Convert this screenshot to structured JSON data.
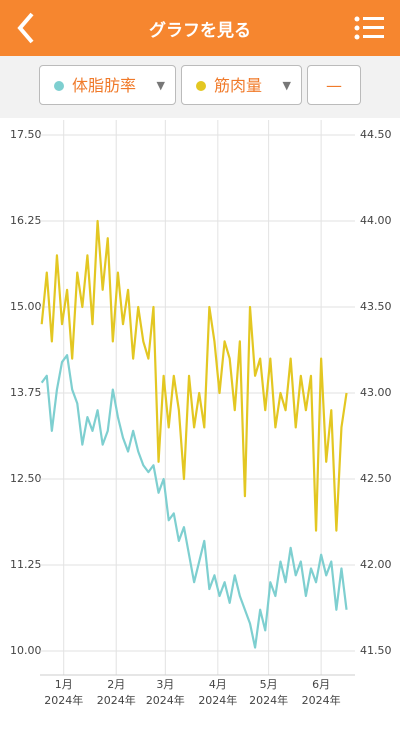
{
  "header": {
    "title": "グラフを見る"
  },
  "selectors": [
    {
      "label": "体脂肪率"
    },
    {
      "label": "筋肉量"
    },
    {
      "label": "—"
    }
  ],
  "chart_data": {
    "type": "line",
    "x": [
      -13,
      -10,
      -7,
      -4,
      -1,
      2,
      5,
      8,
      11,
      14,
      17,
      20,
      23,
      26,
      29,
      32,
      35,
      38,
      41,
      44,
      47,
      50,
      53,
      56,
      59,
      62,
      65,
      68,
      71,
      74,
      77,
      80,
      83,
      86,
      89,
      92,
      95,
      98,
      101,
      104,
      107,
      110,
      113,
      116,
      119,
      122,
      125,
      128,
      131,
      134,
      137,
      140,
      143,
      146,
      149,
      152,
      155,
      158,
      161,
      164,
      167
    ],
    "xlim": [
      -14,
      172
    ],
    "xticks": [
      {
        "value": 0,
        "label": "1月\n2024年"
      },
      {
        "value": 31,
        "label": "2月\n2024年"
      },
      {
        "value": 60,
        "label": "3月\n2024年"
      },
      {
        "value": 91,
        "label": "4月\n2024年"
      },
      {
        "value": 121,
        "label": "5月\n2024年"
      },
      {
        "value": 152,
        "label": "6月\n2024年"
      }
    ],
    "ylim": [
      10,
      17.5
    ],
    "yticks": [
      {
        "value": 10,
        "label": "10.00"
      },
      11.25,
      {
        "value": 12.5,
        "label": "12.50"
      },
      13.75,
      {
        "value": 15,
        "label": "15.00"
      },
      16.25,
      {
        "value": 17.5,
        "label": "17.50"
      }
    ],
    "y2lim": [
      41.5,
      44.5
    ],
    "y2ticks": [
      {
        "value": 41.5,
        "label": "41.50"
      },
      {
        "value": 42,
        "label": "42.00"
      },
      {
        "value": 42.5,
        "label": "42.50"
      },
      {
        "value": 43,
        "label": "43.00"
      },
      {
        "value": 43.5,
        "label": "43.50"
      },
      {
        "value": 44,
        "label": "44.00"
      },
      {
        "value": 44.5,
        "label": "44.50"
      }
    ],
    "grid": true,
    "series": [
      {
        "name": "体脂肪率",
        "color": "#7ecfd0",
        "values": [
          13.9,
          14.0,
          13.2,
          13.8,
          14.2,
          14.3,
          13.8,
          13.6,
          13.0,
          13.4,
          13.2,
          13.5,
          13.0,
          13.2,
          13.8,
          13.4,
          13.1,
          12.9,
          13.2,
          12.9,
          12.7,
          12.6,
          12.7,
          12.3,
          12.5,
          11.9,
          12.0,
          11.6,
          11.8,
          11.4,
          11.0,
          11.3,
          11.6,
          10.9,
          11.1,
          10.8,
          11.0,
          10.7,
          11.1,
          10.8,
          10.6,
          10.4,
          10.05,
          10.6,
          10.3,
          11.0,
          10.8,
          11.3,
          11.0,
          11.5,
          11.1,
          11.3,
          10.8,
          11.2,
          11.0,
          11.4,
          11.1,
          11.3,
          10.6,
          11.2,
          10.6
        ]
      },
      {
        "name": "筋肉量",
        "color": "#e3c722",
        "axis": "y2",
        "values": [
          43.4,
          43.7,
          43.3,
          43.8,
          43.4,
          43.6,
          43.2,
          43.7,
          43.5,
          43.8,
          43.4,
          44.0,
          43.6,
          43.9,
          43.3,
          43.7,
          43.4,
          43.6,
          43.2,
          43.5,
          43.3,
          43.2,
          43.5,
          42.6,
          43.1,
          42.8,
          43.1,
          42.9,
          42.5,
          43.1,
          42.8,
          43.0,
          42.8,
          43.5,
          43.3,
          43.0,
          43.3,
          43.2,
          42.9,
          43.3,
          42.4,
          43.5,
          43.1,
          43.2,
          42.9,
          43.2,
          42.8,
          43.0,
          42.9,
          43.2,
          42.8,
          43.1,
          42.9,
          43.1,
          42.2,
          43.2,
          42.6,
          42.9,
          42.2,
          42.8,
          43.0
        ]
      }
    ]
  }
}
